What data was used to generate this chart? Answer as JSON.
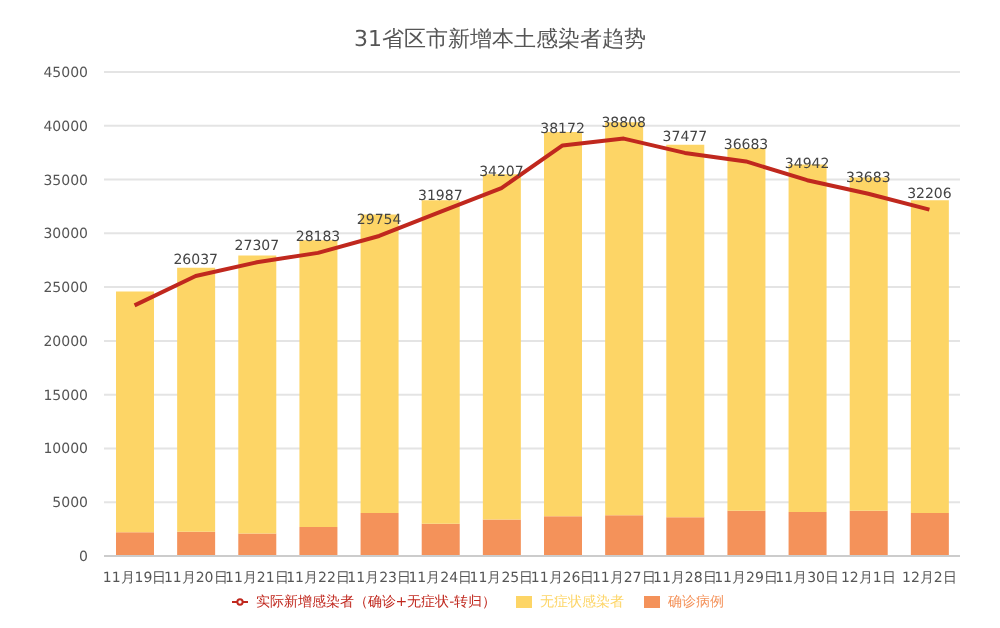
{
  "chart_data": {
    "type": "bar",
    "title": "31省区市新增本土感染者趋势",
    "stacked": true,
    "categories": [
      "11月19日",
      "11月20日",
      "11月21日",
      "11月22日",
      "11月23日",
      "11月24日",
      "11月25日",
      "11月26日",
      "11月27日",
      "11月28日",
      "11月29日",
      "11月30日",
      "12月1日",
      "12月2日"
    ],
    "series": [
      {
        "name": "确诊病例",
        "color": "#f4925a",
        "values": [
          2200,
          2250,
          2100,
          2700,
          4000,
          3000,
          3400,
          3700,
          3800,
          3600,
          4200,
          4100,
          4200,
          4000
        ]
      },
      {
        "name": "无症状感染者",
        "color": "#fdd566",
        "values": [
          22400,
          24550,
          25850,
          26650,
          27760,
          30080,
          32100,
          35720,
          36530,
          34630,
          33700,
          32300,
          31000,
          29080
        ]
      },
      {
        "name": "实际新增感染者（确诊+无症状-转归）",
        "type": "line",
        "color": "#c0281e",
        "values": [
          23300,
          26037,
          27307,
          28183,
          29754,
          31987,
          34207,
          38172,
          38808,
          37477,
          36683,
          34942,
          33683,
          32206
        ],
        "value_labels": [
          null,
          "26037",
          "27307",
          "28183",
          "29754",
          "31987",
          "34207",
          "38172",
          "38808",
          "37477",
          "36683",
          "34942",
          "33683",
          "32206"
        ]
      }
    ],
    "ylim": [
      0,
      45000
    ],
    "yticks": [
      0,
      5000,
      10000,
      15000,
      20000,
      25000,
      30000,
      35000,
      40000,
      45000
    ],
    "grid": "y",
    "legend": "bottom",
    "marker": "none"
  }
}
